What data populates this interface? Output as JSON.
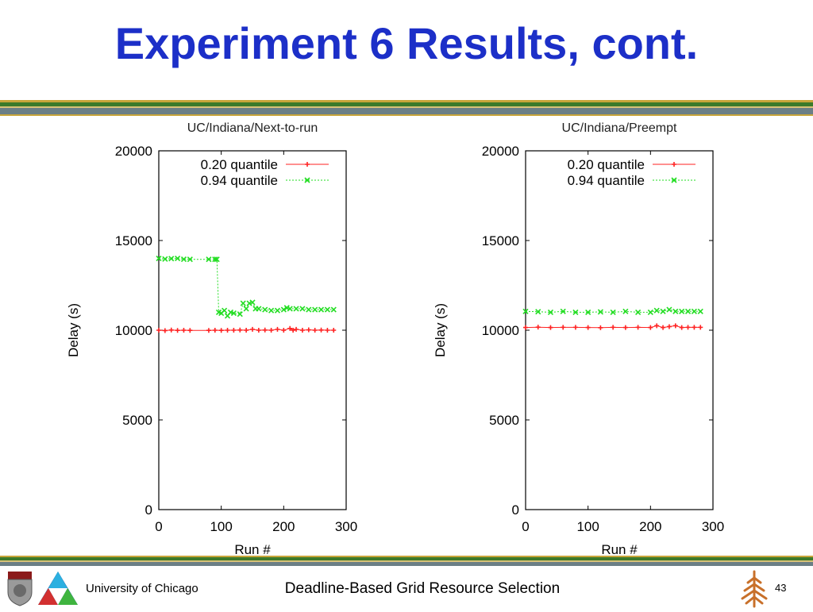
{
  "slide": {
    "title": "Experiment 6 Results, cont.",
    "footer_left": "University of Chicago",
    "footer_center": "Deadline-Based Grid Resource Selection",
    "page_number": "43"
  },
  "colors": {
    "title": "#1c2fc8",
    "band_green": "#3c7a2a",
    "band_gold": "#c8a53a",
    "band_slate": "#6b7f86",
    "series_020": "#ff2222",
    "series_094": "#22dd22"
  },
  "chart_data": [
    {
      "type": "line",
      "title": "UC/Indiana/Next-to-run",
      "xlabel": "Run #",
      "ylabel": "Delay (s)",
      "xlim": [
        0,
        300
      ],
      "ylim": [
        0,
        20000
      ],
      "xticks": [
        "0",
        "100",
        "200",
        "300"
      ],
      "yticks": [
        "0",
        "5000",
        "10000",
        "15000",
        "20000"
      ],
      "legend_position": "top-right",
      "series": [
        {
          "name": "0.20 quantile",
          "x": [
            0,
            10,
            20,
            30,
            40,
            50,
            80,
            90,
            100,
            110,
            120,
            130,
            140,
            150,
            160,
            170,
            180,
            190,
            200,
            210,
            215,
            220,
            230,
            240,
            250,
            260,
            270,
            280
          ],
          "y": [
            10000,
            9980,
            10010,
            9990,
            10000,
            9990,
            9990,
            10000,
            9990,
            10000,
            10000,
            10010,
            10000,
            10050,
            10000,
            10010,
            10000,
            10050,
            10000,
            10100,
            10000,
            10050,
            10000,
            10020,
            10000,
            10010,
            10000,
            10000
          ]
        },
        {
          "name": "0.94 quantile",
          "x": [
            0,
            10,
            20,
            30,
            40,
            50,
            80,
            90,
            93,
            96,
            100,
            105,
            110,
            115,
            120,
            130,
            135,
            140,
            145,
            150,
            155,
            160,
            170,
            180,
            190,
            200,
            205,
            210,
            220,
            230,
            240,
            250,
            260,
            270,
            280
          ],
          "y": [
            14000,
            13970,
            13990,
            14000,
            13960,
            13950,
            13950,
            13950,
            13950,
            11000,
            10950,
            11100,
            10800,
            11000,
            10950,
            10900,
            11500,
            11200,
            11500,
            11550,
            11200,
            11200,
            11150,
            11100,
            11100,
            11150,
            11250,
            11200,
            11200,
            11200,
            11150,
            11150,
            11150,
            11150,
            11150
          ]
        }
      ]
    },
    {
      "type": "line",
      "title": "UC/Indiana/Preempt",
      "xlabel": "Run #",
      "ylabel": "Delay (s)",
      "xlim": [
        0,
        300
      ],
      "ylim": [
        0,
        20000
      ],
      "xticks": [
        "0",
        "100",
        "200",
        "300"
      ],
      "yticks": [
        "0",
        "5000",
        "10000",
        "15000",
        "20000"
      ],
      "legend_position": "top-right",
      "series": [
        {
          "name": "0.20 quantile",
          "x": [
            0,
            20,
            40,
            60,
            80,
            100,
            120,
            140,
            160,
            180,
            200,
            210,
            220,
            230,
            240,
            250,
            260,
            270,
            280
          ],
          "y": [
            10150,
            10170,
            10150,
            10160,
            10160,
            10150,
            10140,
            10160,
            10150,
            10160,
            10150,
            10250,
            10150,
            10200,
            10250,
            10150,
            10160,
            10160,
            10160
          ]
        },
        {
          "name": "0.94 quantile",
          "x": [
            0,
            20,
            40,
            60,
            80,
            100,
            120,
            140,
            160,
            180,
            200,
            210,
            220,
            230,
            240,
            250,
            260,
            270,
            280
          ],
          "y": [
            11050,
            11030,
            11000,
            11050,
            11000,
            11000,
            11020,
            11000,
            11050,
            11000,
            11000,
            11100,
            11050,
            11150,
            11050,
            11050,
            11050,
            11050,
            11050
          ]
        }
      ]
    }
  ]
}
